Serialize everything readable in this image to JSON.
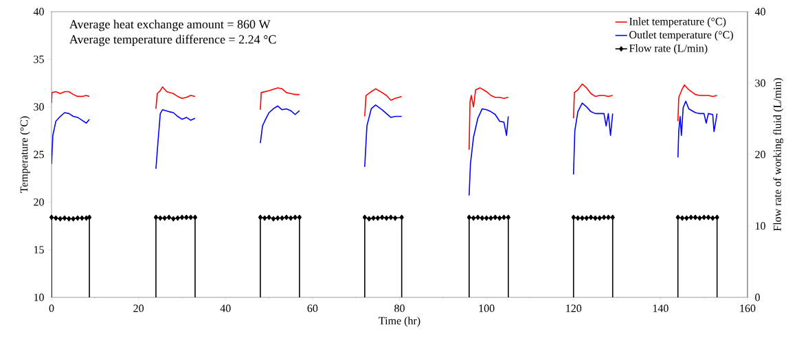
{
  "chart_data": {
    "type": "line",
    "xlabel": "Time (hr)",
    "ylabel": "Temperature (°C)",
    "y2label": "Flow rate of working fluid (L/min)",
    "annotations": [
      "Average heat exchange amount = 860 W",
      "Average temperature difference = 2.24 °C"
    ],
    "xlim": [
      0,
      160
    ],
    "xticks": [
      0,
      20,
      40,
      60,
      80,
      100,
      120,
      140,
      160
    ],
    "ylim": [
      10,
      40
    ],
    "yticks": [
      10,
      15,
      20,
      25,
      30,
      35,
      40
    ],
    "y2lim": [
      0,
      40
    ],
    "y2ticks": [
      0,
      10,
      20,
      30,
      40
    ],
    "legend": "top right",
    "series": [
      {
        "name": "Inlet temperature (°C)",
        "color": "#ff0000",
        "x": [
          0,
          0.1,
          1,
          2,
          3,
          4,
          5,
          6,
          7,
          8,
          8.7,
          16,
          24,
          24.3,
          25,
          25.5,
          26.5,
          28,
          29,
          30,
          31,
          32,
          33,
          40,
          48,
          48.2,
          50,
          52,
          53,
          54,
          55,
          56,
          57,
          64,
          72,
          72.3,
          73.5,
          74.5,
          76,
          77,
          78,
          79,
          80.5,
          88,
          96,
          96.2,
          96.5,
          97,
          97.5,
          98.5,
          100,
          101,
          102,
          103,
          104,
          105,
          112,
          120,
          120.2,
          121,
          122,
          123,
          124,
          125,
          126,
          127,
          128,
          129,
          136,
          144,
          144.2,
          145,
          145.5,
          146.5,
          148,
          149,
          150,
          151,
          152,
          153
        ],
        "values": [
          30.4,
          31.5,
          31.6,
          31.4,
          31.6,
          31.6,
          31.3,
          31.1,
          31.1,
          31.2,
          31.1,
          null,
          29.8,
          31.4,
          31.7,
          32.1,
          31.6,
          31.4,
          31.1,
          30.9,
          31.0,
          31.2,
          31.1,
          null,
          29.7,
          31.5,
          31.7,
          32.0,
          31.9,
          31.5,
          31.4,
          31.3,
          31.3,
          null,
          29.0,
          31.2,
          31.6,
          31.9,
          31.5,
          31.2,
          30.7,
          30.9,
          31.1,
          null,
          25.5,
          30.5,
          31.2,
          30.0,
          31.8,
          32.0,
          31.6,
          31.2,
          31.0,
          31.0,
          30.9,
          31.0,
          null,
          28.8,
          31.5,
          31.8,
          32.4,
          32.0,
          31.4,
          31.1,
          31.2,
          31.2,
          31.1,
          31.2,
          null,
          28.5,
          31.0,
          31.9,
          32.3,
          31.8,
          31.3,
          31.2,
          31.2,
          31.2,
          31.1,
          31.2
        ]
      },
      {
        "name": "Outlet temperature (°C)",
        "color": "#0000ff",
        "x": [
          0,
          0.3,
          1,
          2,
          3,
          4,
          5,
          6,
          7,
          8,
          8.7,
          16,
          24,
          24.5,
          25,
          25.5,
          27,
          28,
          29,
          30,
          31,
          32,
          33,
          40,
          48,
          48.5,
          49,
          50,
          51,
          52,
          53,
          54,
          55,
          56,
          57,
          64,
          72,
          72.5,
          73.5,
          74.5,
          76,
          77,
          78,
          79,
          80.5,
          88,
          96,
          96.3,
          97,
          98,
          99,
          100,
          101,
          102,
          103,
          104,
          104.6,
          105,
          112,
          120,
          120.3,
          121,
          122,
          123,
          124,
          125,
          126,
          127,
          127.5,
          128,
          128.5,
          129,
          136,
          144,
          144.2,
          144.5,
          144.8,
          145.2,
          145.8,
          146.5,
          148,
          149,
          150,
          150.5,
          151,
          152,
          152.3,
          153
        ],
        "values": [
          24.0,
          27.0,
          28.5,
          29.0,
          29.4,
          29.3,
          29.0,
          28.9,
          28.6,
          28.3,
          28.7,
          null,
          23.5,
          26.5,
          29.3,
          29.7,
          29.5,
          29.4,
          29.0,
          28.7,
          28.9,
          28.6,
          28.8,
          null,
          26.2,
          28.0,
          28.5,
          29.4,
          29.8,
          30.1,
          29.7,
          29.8,
          29.6,
          29.2,
          29.6,
          null,
          23.7,
          28.0,
          29.8,
          30.2,
          29.7,
          29.3,
          28.9,
          29.0,
          29.0,
          null,
          20.7,
          24.0,
          26.8,
          28.8,
          29.8,
          29.7,
          29.5,
          29.2,
          28.5,
          28.4,
          27.0,
          29.0,
          null,
          22.9,
          27.5,
          29.5,
          30.4,
          30.0,
          29.5,
          29.3,
          29.3,
          29.3,
          28.0,
          29.3,
          27.0,
          29.3,
          null,
          24.7,
          27.5,
          29.0,
          27.0,
          29.9,
          30.6,
          29.8,
          29.4,
          29.3,
          29.3,
          28.3,
          29.3,
          29.2,
          27.4,
          29.3
        ]
      },
      {
        "name": "Flow rate (L/min)",
        "color": "#000000",
        "axis": "y2",
        "marker": "diamond",
        "x": [
          0,
          0,
          1,
          2,
          3,
          4,
          5,
          6,
          7,
          8,
          8.7,
          8.7,
          16,
          24,
          24,
          25,
          26,
          27,
          28,
          29,
          30,
          31,
          32,
          33,
          33,
          40,
          48,
          48,
          49,
          50,
          51,
          52,
          53,
          54,
          55,
          56,
          57,
          57,
          64,
          72,
          72,
          73,
          74,
          75,
          76,
          77,
          78,
          79,
          80.5,
          80.5,
          88,
          96,
          96,
          97,
          98,
          99,
          100,
          101,
          102,
          103,
          104,
          105,
          105,
          112,
          120,
          120,
          121,
          122,
          123,
          124,
          125,
          126,
          127,
          128,
          129,
          129,
          136,
          144,
          144,
          145,
          146,
          147,
          148,
          149,
          150,
          151,
          152,
          153,
          153
        ],
        "values": [
          0,
          11.2,
          11.1,
          11.0,
          11.1,
          11.0,
          11.0,
          11.1,
          11.1,
          11.1,
          11.2,
          0,
          null,
          0,
          11.2,
          11.1,
          11.1,
          11.2,
          11.0,
          11.1,
          11.2,
          11.2,
          11.2,
          11.2,
          0,
          null,
          0,
          11.2,
          11.1,
          11.2,
          11.0,
          11.1,
          11.1,
          11.2,
          11.1,
          11.2,
          11.2,
          0,
          null,
          0,
          11.2,
          11.0,
          11.1,
          11.1,
          11.2,
          11.1,
          11.2,
          11.1,
          11.2,
          0,
          null,
          0,
          11.2,
          11.1,
          11.2,
          11.1,
          11.1,
          11.1,
          11.2,
          11.1,
          11.2,
          11.2,
          0,
          null,
          0,
          11.2,
          11.1,
          11.1,
          11.1,
          11.2,
          11.1,
          11.1,
          11.2,
          11.2,
          11.2,
          0,
          null,
          0,
          11.2,
          11.1,
          11.1,
          11.2,
          11.2,
          11.1,
          11.2,
          11.2,
          11.1,
          11.2,
          0
        ]
      }
    ]
  }
}
